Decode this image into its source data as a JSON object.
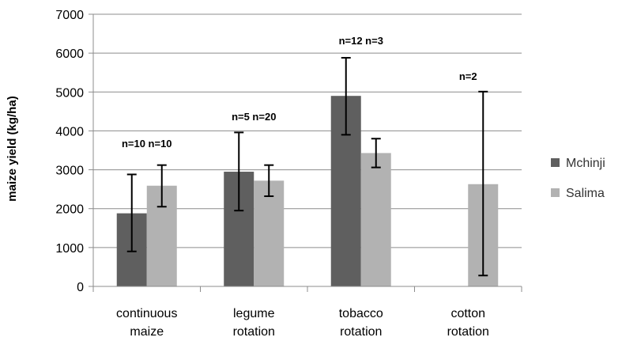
{
  "chart_data": {
    "type": "bar",
    "title": "",
    "xlabel": "",
    "ylabel": "maize yield (kg/ha)",
    "ylim": [
      0,
      7000
    ],
    "yticks": [
      0,
      1000,
      2000,
      3000,
      4000,
      5000,
      6000,
      7000
    ],
    "grid": true,
    "legend_position": "right",
    "categories": [
      [
        "continuous",
        "maize"
      ],
      [
        "legume",
        "rotation"
      ],
      [
        "tobacco",
        "rotation"
      ],
      [
        "cotton",
        "rotation"
      ]
    ],
    "series": [
      {
        "name": "Mchinji",
        "color": "#5f5f5f",
        "values": [
          1880,
          2950,
          4900,
          null
        ],
        "error_low": [
          900,
          1950,
          3900,
          null
        ],
        "error_high": [
          2880,
          3960,
          5880,
          null
        ]
      },
      {
        "name": "Salima",
        "color": "#b2b2b2",
        "values": [
          2590,
          2720,
          3430,
          2630
        ],
        "error_low": [
          2050,
          2320,
          3060,
          280
        ],
        "error_high": [
          3120,
          3120,
          3800,
          5010
        ]
      }
    ],
    "annotations": [
      "n=10 n=10",
      "n=5 n=20",
      "n=12 n=3",
      "n=2"
    ]
  }
}
